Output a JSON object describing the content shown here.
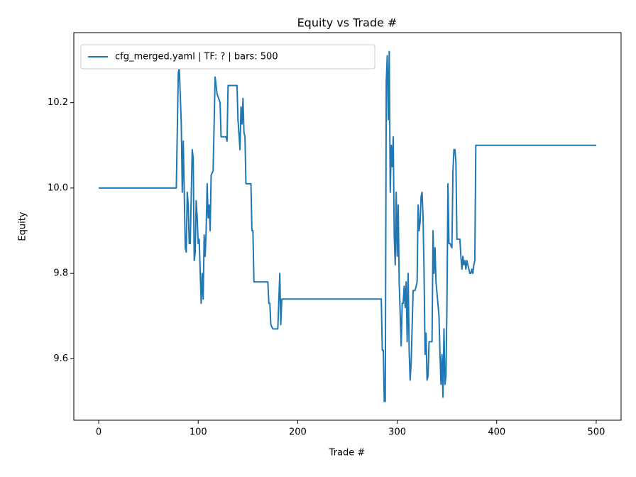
{
  "chart_data": {
    "type": "line",
    "title": "Equity vs Trade #",
    "xlabel": "Trade #",
    "ylabel": "Equity",
    "x": [
      0,
      78,
      80,
      81,
      83,
      84,
      85,
      86,
      87,
      88,
      89,
      90,
      91,
      92,
      93,
      94,
      95,
      96,
      97,
      98,
      99,
      100,
      101,
      103,
      104,
      105,
      106,
      107,
      108,
      109,
      110,
      111,
      112,
      113,
      115,
      117,
      119,
      122,
      123,
      128,
      129,
      130,
      139,
      140,
      142,
      143,
      144,
      145,
      146,
      147,
      148,
      153,
      154,
      155,
      156,
      170,
      171,
      172,
      173,
      175,
      180,
      182,
      183,
      184,
      284,
      285,
      286,
      287,
      288,
      289,
      290,
      291,
      292,
      293,
      294,
      295,
      296,
      297,
      298,
      299,
      300,
      301,
      302,
      304,
      305,
      306,
      307,
      308,
      309,
      310,
      311,
      312,
      313,
      314,
      316,
      318,
      320,
      321,
      322,
      323,
      324,
      325,
      326,
      327,
      328,
      329,
      330,
      331,
      332,
      335,
      336,
      337,
      338,
      339,
      342,
      343,
      344,
      345,
      346,
      347,
      348,
      349,
      350,
      351,
      352,
      353,
      355,
      356,
      357,
      358,
      359,
      360,
      363,
      364,
      365,
      366,
      367,
      368,
      369,
      370,
      371,
      373,
      374,
      375,
      376,
      377,
      378,
      379,
      500
    ],
    "series": [
      {
        "name": "cfg_merged.yaml | TF: ? | bars: 500",
        "color": "#1f77b4",
        "values": [
          10.0,
          10.0,
          10.27,
          10.28,
          10.15,
          9.99,
          10.11,
          9.99,
          9.86,
          9.85,
          9.99,
          9.96,
          9.87,
          9.87,
          9.98,
          10.09,
          10.07,
          9.83,
          9.85,
          9.97,
          9.93,
          9.87,
          9.88,
          9.73,
          9.8,
          9.74,
          9.89,
          9.84,
          9.9,
          10.01,
          9.93,
          9.96,
          9.9,
          10.03,
          10.04,
          10.26,
          10.22,
          10.2,
          10.12,
          10.12,
          10.11,
          10.24,
          10.24,
          10.16,
          10.09,
          10.19,
          10.15,
          10.21,
          10.13,
          10.12,
          10.01,
          10.01,
          9.9,
          9.9,
          9.78,
          9.78,
          9.73,
          9.73,
          9.68,
          9.67,
          9.67,
          9.8,
          9.68,
          9.74,
          9.74,
          9.62,
          9.62,
          9.5,
          9.5,
          10.25,
          10.31,
          10.16,
          10.32,
          9.99,
          10.1,
          10.05,
          10.12,
          9.89,
          9.82,
          9.99,
          9.84,
          9.96,
          9.78,
          9.63,
          9.73,
          9.73,
          9.77,
          9.72,
          9.78,
          9.64,
          9.8,
          9.62,
          9.55,
          9.59,
          9.76,
          9.76,
          9.78,
          9.96,
          9.9,
          9.92,
          9.98,
          9.99,
          9.93,
          9.8,
          9.61,
          9.66,
          9.55,
          9.56,
          9.64,
          9.64,
          9.9,
          9.8,
          9.86,
          9.78,
          9.7,
          9.61,
          9.54,
          9.61,
          9.51,
          9.67,
          9.54,
          9.56,
          9.73,
          10.01,
          9.87,
          9.87,
          9.86,
          10.04,
          10.09,
          10.09,
          10.06,
          9.88,
          9.88,
          9.84,
          9.81,
          9.84,
          9.82,
          9.83,
          9.81,
          9.83,
          9.82,
          9.8,
          9.8,
          9.81,
          9.8,
          9.82,
          9.83,
          10.1,
          10.1
        ]
      }
    ],
    "xlim": [
      -25,
      525
    ],
    "xticks": [
      0,
      100,
      200,
      300,
      400,
      500
    ],
    "ylim": [
      9.456,
      10.364
    ],
    "yticks": [
      9.6,
      9.8,
      {
        "value": 10.0,
        "label": "10.0"
      },
      10.2
    ],
    "legend": "upper left"
  }
}
